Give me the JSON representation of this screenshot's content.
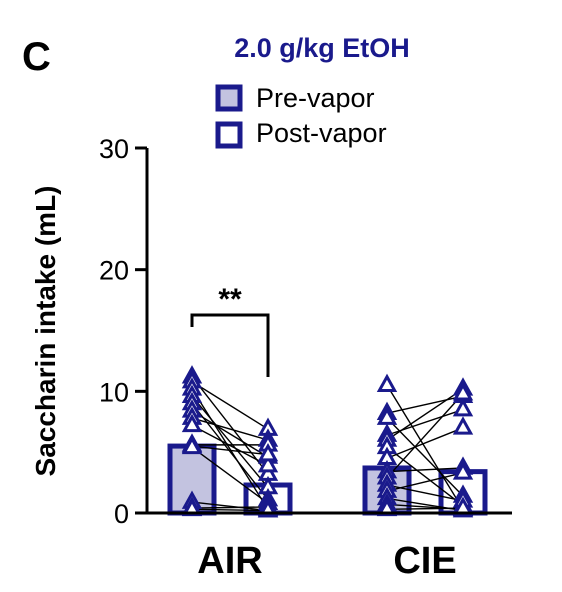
{
  "panel_label": "C",
  "colors": {
    "navy": "#1a1a8c",
    "pre_fill": "#c3c3e0",
    "post_fill": "#ffffff",
    "axis": "#000000"
  },
  "chart_data": {
    "type": "bar",
    "title": "2.0 g/kg EtOH",
    "xlabel": "",
    "ylabel": "Saccharin intake (mL)",
    "ylim": [
      0,
      30
    ],
    "yticks": [
      0,
      10,
      20,
      30
    ],
    "categories": [
      "AIR",
      "CIE"
    ],
    "legend_position": "top",
    "grid": false,
    "series": [
      {
        "name": "Pre-vapor",
        "values": [
          5.5,
          3.7
        ]
      },
      {
        "name": "Post-vapor",
        "values": [
          2.3,
          3.4
        ]
      }
    ],
    "individual_points": [
      {
        "group": "AIR",
        "pairs": [
          [
            11.2,
            3.2
          ],
          [
            10.8,
            6.9
          ],
          [
            10.2,
            0.3
          ],
          [
            9.6,
            2.1
          ],
          [
            9.0,
            1.1
          ],
          [
            8.4,
            4.6
          ],
          [
            7.8,
            6.0
          ],
          [
            7.2,
            3.9
          ],
          [
            5.6,
            5.6
          ],
          [
            5.5,
            4.8
          ],
          [
            5.4,
            0.8
          ],
          [
            0.9,
            0.2
          ],
          [
            0.4,
            0.5
          ],
          [
            0.3,
            0.2
          ]
        ]
      },
      {
        "group": "CIE",
        "pairs": [
          [
            10.5,
            0.3
          ],
          [
            8.2,
            9.6
          ],
          [
            7.8,
            1.4
          ],
          [
            6.4,
            8.5
          ],
          [
            6.0,
            10.2
          ],
          [
            5.4,
            0.6
          ],
          [
            4.5,
            7.0
          ],
          [
            3.4,
            3.7
          ],
          [
            2.9,
            9.8
          ],
          [
            2.3,
            1.0
          ],
          [
            1.8,
            3.3
          ],
          [
            1.2,
            0.2
          ],
          [
            0.7,
            0.3
          ],
          [
            0.3,
            0.4
          ]
        ]
      }
    ],
    "annotations": [
      {
        "text": "**",
        "group": "AIR"
      }
    ]
  }
}
